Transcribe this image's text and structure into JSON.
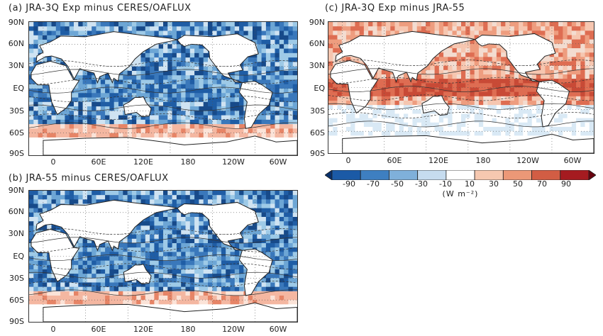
{
  "panels": {
    "a": {
      "title": "(a) JRA-3Q Exp minus CERES/OAFLUX",
      "style": "blue"
    },
    "b": {
      "title": "(b) JRA-55 minus CERES/OAFLUX",
      "style": "blue"
    },
    "c": {
      "title": "(c) JRA-3Q Exp minus JRA-55",
      "style": "red"
    }
  },
  "latitude_ticks": [
    "90N",
    "60N",
    "30N",
    "EQ",
    "30S",
    "60S",
    "90S"
  ],
  "longitude_ticks": [
    "0",
    "60E",
    "120E",
    "180",
    "120W",
    "60W"
  ],
  "colorbar": {
    "ticks": [
      "-90",
      "-70",
      "-50",
      "-30",
      "-10",
      "10",
      "30",
      "50",
      "70",
      "90"
    ],
    "colors": [
      "#08306b",
      "#1b5aa6",
      "#3e7fc1",
      "#7fb0da",
      "#c6dcef",
      "#ffffff",
      "#f6c8b0",
      "#ec9877",
      "#d25d44",
      "#a51b20",
      "#67000d"
    ],
    "units": "(W m⁻²)"
  }
}
